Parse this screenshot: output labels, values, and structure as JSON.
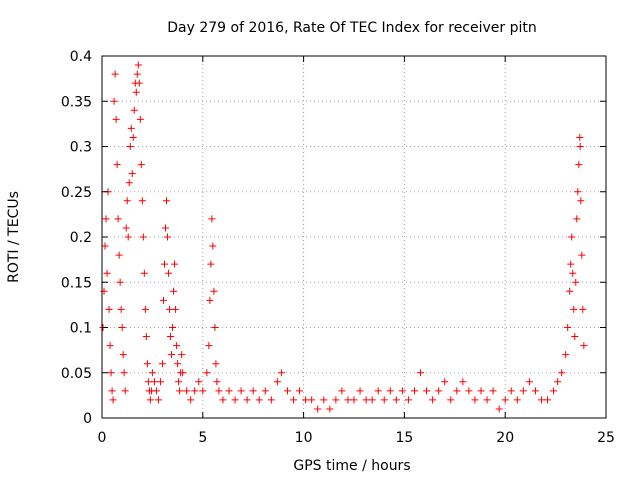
{
  "chart_data": {
    "type": "scatter",
    "title": "Day 279 of 2016, Rate Of TEC Index for receiver pitn",
    "xlabel": "GPS time / hours",
    "ylabel": "ROTI / TECUs",
    "xlim": [
      0,
      25
    ],
    "ylim": [
      0,
      0.4
    ],
    "grid": true,
    "marker": "plus",
    "color": "#ff0000",
    "x_ticks": [
      {
        "value": 0,
        "label": "0"
      },
      {
        "value": 5,
        "label": "5"
      },
      {
        "value": 10,
        "label": "10"
      },
      {
        "value": 15,
        "label": "15"
      },
      {
        "value": 20,
        "label": "20"
      },
      {
        "value": 25,
        "label": "25"
      }
    ],
    "y_ticks": [
      {
        "value": 0,
        "label": "0"
      },
      {
        "value": 0.05,
        "label": "0.05"
      },
      {
        "value": 0.1,
        "label": "0.1"
      },
      {
        "value": 0.15,
        "label": "0.15"
      },
      {
        "value": 0.2,
        "label": "0.2"
      },
      {
        "value": 0.25,
        "label": "0.25"
      },
      {
        "value": 0.3,
        "label": "0.3"
      },
      {
        "value": 0.35,
        "label": "0.35"
      },
      {
        "value": 0.4,
        "label": "0.4"
      }
    ],
    "series": [
      {
        "name": "ROTI",
        "points": [
          [
            0.05,
            0.1
          ],
          [
            0.1,
            0.14
          ],
          [
            0.15,
            0.19
          ],
          [
            0.2,
            0.22
          ],
          [
            0.25,
            0.16
          ],
          [
            0.3,
            0.25
          ],
          [
            0.35,
            0.12
          ],
          [
            0.4,
            0.08
          ],
          [
            0.45,
            0.05
          ],
          [
            0.5,
            0.03
          ],
          [
            0.55,
            0.02
          ],
          [
            0.6,
            0.35
          ],
          [
            0.65,
            0.38
          ],
          [
            0.7,
            0.33
          ],
          [
            0.75,
            0.28
          ],
          [
            0.8,
            0.22
          ],
          [
            0.85,
            0.18
          ],
          [
            0.9,
            0.15
          ],
          [
            0.95,
            0.12
          ],
          [
            1.0,
            0.1
          ],
          [
            1.05,
            0.07
          ],
          [
            1.1,
            0.05
          ],
          [
            1.15,
            0.03
          ],
          [
            1.2,
            0.21
          ],
          [
            1.25,
            0.24
          ],
          [
            1.3,
            0.2
          ],
          [
            1.35,
            0.26
          ],
          [
            1.4,
            0.3
          ],
          [
            1.45,
            0.32
          ],
          [
            1.5,
            0.27
          ],
          [
            1.55,
            0.31
          ],
          [
            1.6,
            0.34
          ],
          [
            1.65,
            0.37
          ],
          [
            1.7,
            0.36
          ],
          [
            1.75,
            0.38
          ],
          [
            1.8,
            0.39
          ],
          [
            1.85,
            0.37
          ],
          [
            1.9,
            0.33
          ],
          [
            1.95,
            0.28
          ],
          [
            2.0,
            0.24
          ],
          [
            2.05,
            0.2
          ],
          [
            2.1,
            0.16
          ],
          [
            2.15,
            0.12
          ],
          [
            2.2,
            0.09
          ],
          [
            2.25,
            0.06
          ],
          [
            2.3,
            0.04
          ],
          [
            2.35,
            0.03
          ],
          [
            2.4,
            0.02
          ],
          [
            2.45,
            0.03
          ],
          [
            2.5,
            0.05
          ],
          [
            2.6,
            0.04
          ],
          [
            2.7,
            0.03
          ],
          [
            2.8,
            0.02
          ],
          [
            2.9,
            0.04
          ],
          [
            3.0,
            0.06
          ],
          [
            3.05,
            0.13
          ],
          [
            3.1,
            0.17
          ],
          [
            3.15,
            0.21
          ],
          [
            3.2,
            0.24
          ],
          [
            3.25,
            0.2
          ],
          [
            3.3,
            0.16
          ],
          [
            3.35,
            0.12
          ],
          [
            3.4,
            0.09
          ],
          [
            3.45,
            0.07
          ],
          [
            3.5,
            0.1
          ],
          [
            3.55,
            0.14
          ],
          [
            3.6,
            0.17
          ],
          [
            3.65,
            0.12
          ],
          [
            3.7,
            0.08
          ],
          [
            3.75,
            0.06
          ],
          [
            3.8,
            0.04
          ],
          [
            3.85,
            0.03
          ],
          [
            3.9,
            0.05
          ],
          [
            3.95,
            0.07
          ],
          [
            4.0,
            0.05
          ],
          [
            4.2,
            0.03
          ],
          [
            4.4,
            0.02
          ],
          [
            4.6,
            0.03
          ],
          [
            4.8,
            0.04
          ],
          [
            5.0,
            0.03
          ],
          [
            5.2,
            0.05
          ],
          [
            5.3,
            0.08
          ],
          [
            5.35,
            0.13
          ],
          [
            5.4,
            0.17
          ],
          [
            5.45,
            0.22
          ],
          [
            5.5,
            0.19
          ],
          [
            5.55,
            0.14
          ],
          [
            5.6,
            0.1
          ],
          [
            5.65,
            0.06
          ],
          [
            5.7,
            0.04
          ],
          [
            5.8,
            0.03
          ],
          [
            6.0,
            0.02
          ],
          [
            6.3,
            0.03
          ],
          [
            6.6,
            0.02
          ],
          [
            6.9,
            0.03
          ],
          [
            7.2,
            0.02
          ],
          [
            7.5,
            0.03
          ],
          [
            7.8,
            0.02
          ],
          [
            8.1,
            0.03
          ],
          [
            8.4,
            0.02
          ],
          [
            8.7,
            0.04
          ],
          [
            8.9,
            0.05
          ],
          [
            9.2,
            0.03
          ],
          [
            9.5,
            0.02
          ],
          [
            9.8,
            0.03
          ],
          [
            10.1,
            0.02
          ],
          [
            10.4,
            0.02
          ],
          [
            10.7,
            0.01
          ],
          [
            11.0,
            0.02
          ],
          [
            11.3,
            0.01
          ],
          [
            11.6,
            0.02
          ],
          [
            11.9,
            0.03
          ],
          [
            12.2,
            0.02
          ],
          [
            12.5,
            0.02
          ],
          [
            12.8,
            0.03
          ],
          [
            13.1,
            0.02
          ],
          [
            13.4,
            0.02
          ],
          [
            13.7,
            0.03
          ],
          [
            14.0,
            0.02
          ],
          [
            14.3,
            0.03
          ],
          [
            14.6,
            0.02
          ],
          [
            14.9,
            0.03
          ],
          [
            15.2,
            0.02
          ],
          [
            15.5,
            0.03
          ],
          [
            15.8,
            0.05
          ],
          [
            16.1,
            0.03
          ],
          [
            16.4,
            0.02
          ],
          [
            16.7,
            0.03
          ],
          [
            17.0,
            0.04
          ],
          [
            17.3,
            0.02
          ],
          [
            17.6,
            0.03
          ],
          [
            17.9,
            0.04
          ],
          [
            18.2,
            0.03
          ],
          [
            18.5,
            0.02
          ],
          [
            18.8,
            0.03
          ],
          [
            19.1,
            0.02
          ],
          [
            19.4,
            0.03
          ],
          [
            19.7,
            0.01
          ],
          [
            20.0,
            0.02
          ],
          [
            20.3,
            0.03
          ],
          [
            20.6,
            0.02
          ],
          [
            20.9,
            0.03
          ],
          [
            21.2,
            0.04
          ],
          [
            21.5,
            0.03
          ],
          [
            21.8,
            0.02
          ],
          [
            22.1,
            0.02
          ],
          [
            22.4,
            0.03
          ],
          [
            22.6,
            0.04
          ],
          [
            22.8,
            0.05
          ],
          [
            23.0,
            0.07
          ],
          [
            23.1,
            0.1
          ],
          [
            23.2,
            0.14
          ],
          [
            23.25,
            0.17
          ],
          [
            23.3,
            0.2
          ],
          [
            23.35,
            0.16
          ],
          [
            23.4,
            0.12
          ],
          [
            23.45,
            0.09
          ],
          [
            23.5,
            0.15
          ],
          [
            23.55,
            0.22
          ],
          [
            23.6,
            0.25
          ],
          [
            23.65,
            0.28
          ],
          [
            23.7,
            0.31
          ],
          [
            23.72,
            0.3
          ],
          [
            23.75,
            0.24
          ],
          [
            23.8,
            0.18
          ],
          [
            23.85,
            0.12
          ],
          [
            23.9,
            0.08
          ]
        ]
      }
    ]
  }
}
